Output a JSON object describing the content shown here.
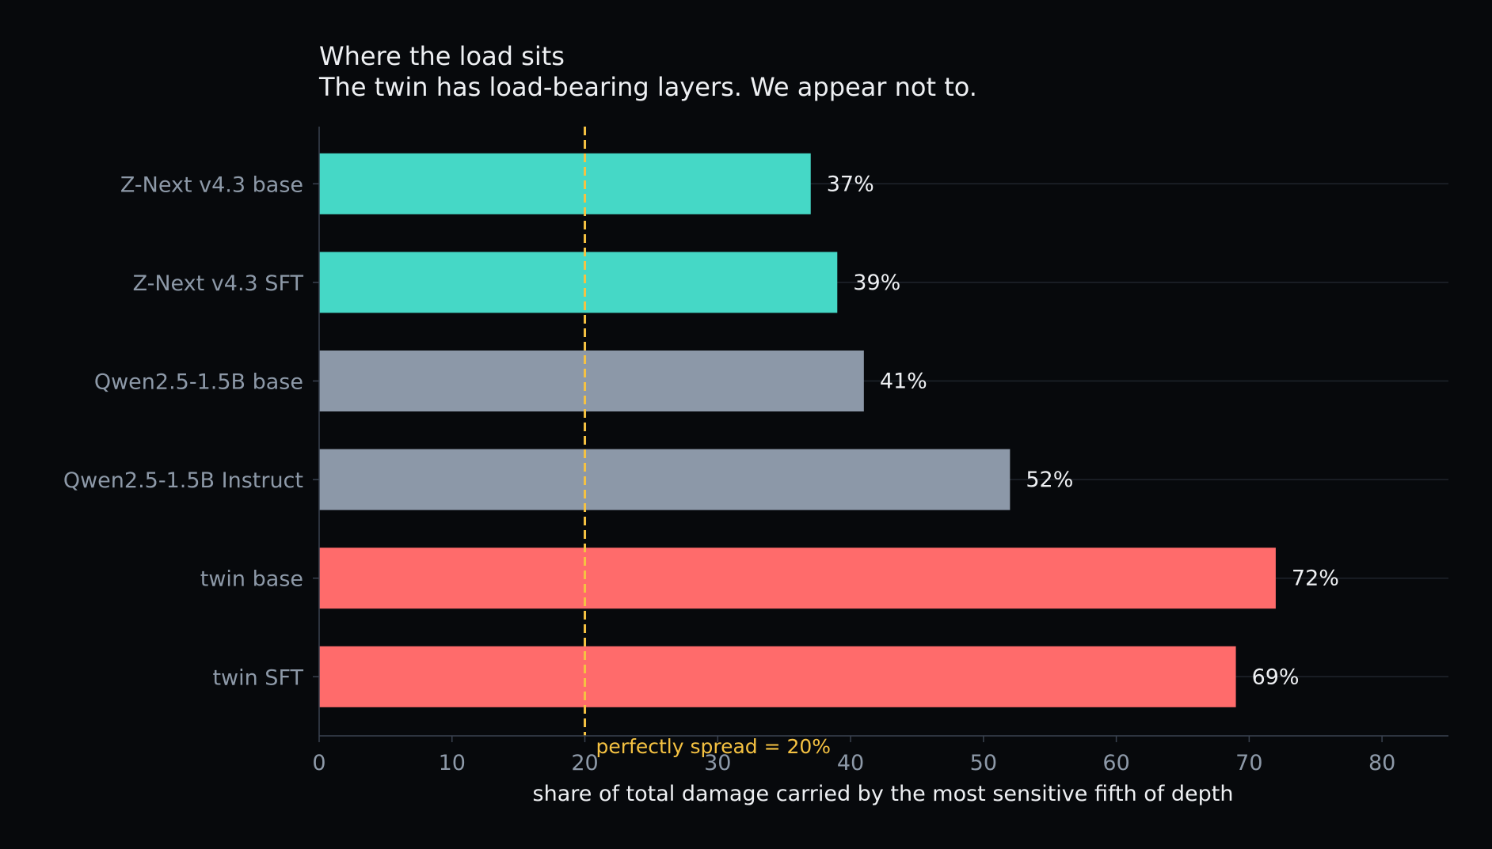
{
  "chart_data": {
    "type": "bar",
    "orientation": "horizontal",
    "title": "Where the load sits",
    "subtitle": "The twin has load-bearing layers. We appear not to.",
    "xlabel": "share of total damage carried by the most sensitive fifth of depth",
    "ylabel": "",
    "xlim": [
      0,
      85
    ],
    "xticks": [
      0,
      10,
      20,
      30,
      40,
      50,
      60,
      70,
      80
    ],
    "grid": "horizontal only",
    "categories": [
      "Z-Next v4.3 base",
      "Z-Next v4.3 SFT",
      "Qwen2.5-1.5B base",
      "Qwen2.5-1.5B Instruct",
      "twin base",
      "twin SFT"
    ],
    "values": [
      37,
      39,
      41,
      52,
      72,
      69
    ],
    "value_labels": [
      "37%",
      "39%",
      "41%",
      "52%",
      "72%",
      "69%"
    ],
    "bar_colors": [
      "#45d8c6",
      "#45d8c6",
      "#8c98a8",
      "#8c98a8",
      "#ff6b6b",
      "#ff6b6b"
    ],
    "reference_line": {
      "x": 20,
      "label": "perfectly spread = 20%",
      "color": "#f5c242",
      "style": "dashed"
    }
  },
  "colors": {
    "background": "#07090c",
    "text": "#eef0f3",
    "tick_text": "#8d99a8"
  }
}
